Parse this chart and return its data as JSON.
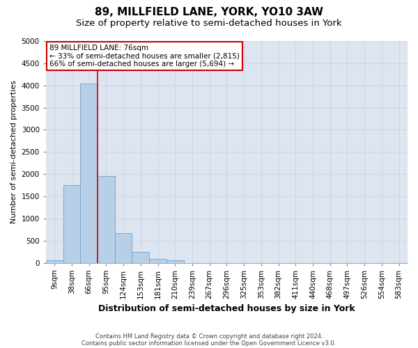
{
  "title": "89, MILLFIELD LANE, YORK, YO10 3AW",
  "subtitle": "Size of property relative to semi-detached houses in York",
  "xlabel": "Distribution of semi-detached houses by size in York",
  "ylabel": "Number of semi-detached properties",
  "footnote1": "Contains HM Land Registry data © Crown copyright and database right 2024.",
  "footnote2": "Contains public sector information licensed under the Open Government Licence v3.0.",
  "bar_labels": [
    "9sqm",
    "38sqm",
    "66sqm",
    "95sqm",
    "124sqm",
    "153sqm",
    "181sqm",
    "210sqm",
    "239sqm",
    "267sqm",
    "296sqm",
    "325sqm",
    "353sqm",
    "382sqm",
    "411sqm",
    "440sqm",
    "468sqm",
    "497sqm",
    "526sqm",
    "554sqm",
    "583sqm"
  ],
  "bar_values": [
    50,
    1750,
    4050,
    1950,
    660,
    240,
    90,
    50,
    0,
    0,
    0,
    0,
    0,
    0,
    0,
    0,
    0,
    0,
    0,
    0,
    0
  ],
  "bar_color": "#b8cfe8",
  "bar_edge_color": "#6fa0cc",
  "annotation_text_lines": [
    "89 MILLFIELD LANE: 76sqm",
    "← 33% of semi-detached houses are smaller (2,815)",
    "66% of semi-detached houses are larger (5,694) →"
  ],
  "annotation_box_color": "#ffffff",
  "annotation_box_edge": "#cc0000",
  "vline_color": "#cc0000",
  "vline_x_index": 2.5,
  "ylim": [
    0,
    5000
  ],
  "yticks": [
    0,
    500,
    1000,
    1500,
    2000,
    2500,
    3000,
    3500,
    4000,
    4500,
    5000
  ],
  "grid_color": "#ccd5e8",
  "bg_color": "#dde5f0",
  "title_fontsize": 11,
  "subtitle_fontsize": 9.5,
  "tick_fontsize": 7.5,
  "ylabel_fontsize": 8,
  "xlabel_fontsize": 9,
  "annot_fontsize": 7.5,
  "footnote_fontsize": 6
}
